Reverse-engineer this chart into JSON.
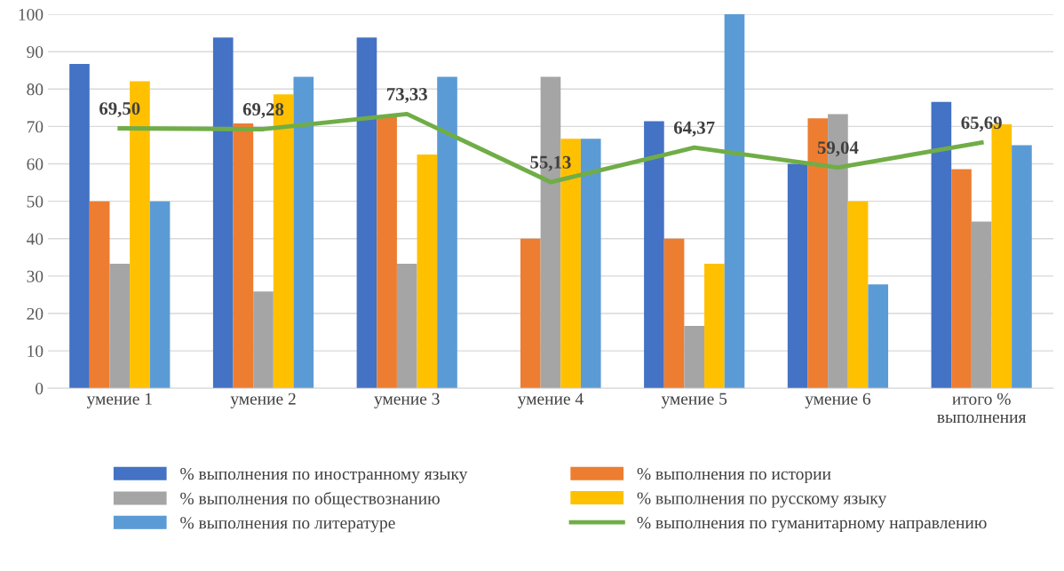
{
  "chart_data": {
    "type": "bar",
    "categories": [
      "умение 1",
      "умение 2",
      "умение 3",
      "умение 4",
      "умение 5",
      "умение 6",
      "итого %\nвыполнения"
    ],
    "series": [
      {
        "name": "% выполнения по иностранному языку",
        "color": "#4472c4",
        "values": [
          86.7,
          93.8,
          93.8,
          0,
          71.4,
          60,
          76.6
        ]
      },
      {
        "name": "% выполнения по истории",
        "color": "#ed7d31",
        "values": [
          50,
          70.8,
          72.5,
          40,
          40,
          72.2,
          58.6
        ]
      },
      {
        "name": "% выполнения по обществознанию",
        "color": "#a5a5a5",
        "values": [
          33.3,
          25.9,
          33.3,
          83.3,
          16.7,
          73.3,
          44.6
        ]
      },
      {
        "name": "% выполнения по русскому языку",
        "color": "#ffc000",
        "values": [
          82.1,
          78.6,
          62.5,
          66.7,
          33.3,
          50,
          70.6
        ]
      },
      {
        "name": "% выполнения по литературе",
        "color": "#5b9bd5",
        "values": [
          50,
          83.3,
          83.3,
          66.7,
          100,
          27.8,
          65.0
        ]
      },
      {
        "name": "% выполнения по гуманитарному направлению",
        "color": "#70ad47",
        "type": "line",
        "values": [
          69.5,
          69.28,
          73.33,
          55.13,
          64.37,
          59.04,
          65.69
        ],
        "value_labels": [
          "69,50",
          "69,28",
          "73,33",
          "55,13",
          "64,37",
          "59,04",
          "65,69"
        ]
      }
    ],
    "ylim": [
      0,
      100
    ],
    "yticks": [
      0,
      10,
      20,
      30,
      40,
      50,
      60,
      70,
      80,
      90,
      100
    ],
    "grid": "y",
    "legend": "bottom",
    "marker": "none"
  }
}
